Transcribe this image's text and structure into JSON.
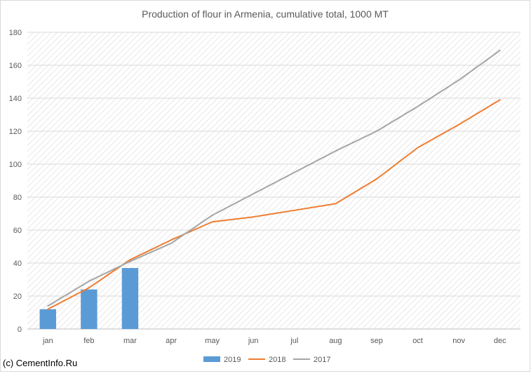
{
  "chart_data": {
    "type": "bar",
    "title": "Production of flour in Armenia, cumulative total, 1000 MT",
    "xlabel": "",
    "ylabel": "",
    "ylim": [
      0,
      180
    ],
    "yticks": [
      0,
      20,
      40,
      60,
      80,
      100,
      120,
      140,
      160,
      180
    ],
    "categories": [
      "jan",
      "feb",
      "mar",
      "apr",
      "may",
      "jun",
      "jul",
      "aug",
      "sep",
      "oct",
      "nov",
      "dec"
    ],
    "grid": true,
    "legend_position": "bottom",
    "series": [
      {
        "name": "2019",
        "type": "bar",
        "color": "#5b9bd5",
        "values": [
          12,
          24,
          37,
          null,
          null,
          null,
          null,
          null,
          null,
          null,
          null,
          null
        ]
      },
      {
        "name": "2018",
        "type": "line",
        "color": "#ed7d31",
        "values": [
          12,
          25,
          42,
          54,
          65,
          68,
          72,
          76,
          91,
          110,
          124,
          139
        ]
      },
      {
        "name": "2017",
        "type": "line",
        "color": "#a5a5a5",
        "values": [
          14,
          29,
          41,
          52,
          69,
          82,
          95,
          108,
          120,
          135,
          151,
          169
        ]
      }
    ]
  },
  "copyright": "(c) CementInfo.Ru"
}
